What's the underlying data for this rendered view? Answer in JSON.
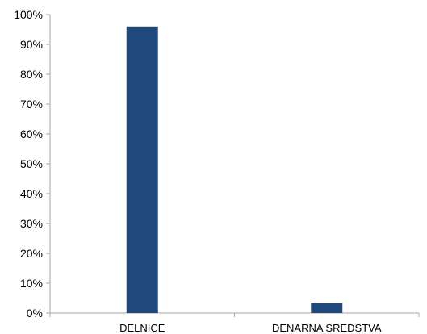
{
  "chart_data": {
    "type": "bar",
    "categories": [
      "DELNICE",
      "DENARNA SREDSTVA"
    ],
    "values": [
      96,
      3.5
    ],
    "ylim": [
      0,
      100
    ],
    "yticks": [
      "0%",
      "10%",
      "20%",
      "30%",
      "40%",
      "50%",
      "60%",
      "70%",
      "80%",
      "90%",
      "100%"
    ],
    "grid": false,
    "legend": "none",
    "bar_color": "#1f497d",
    "axis_color": "#a6a6a6"
  }
}
